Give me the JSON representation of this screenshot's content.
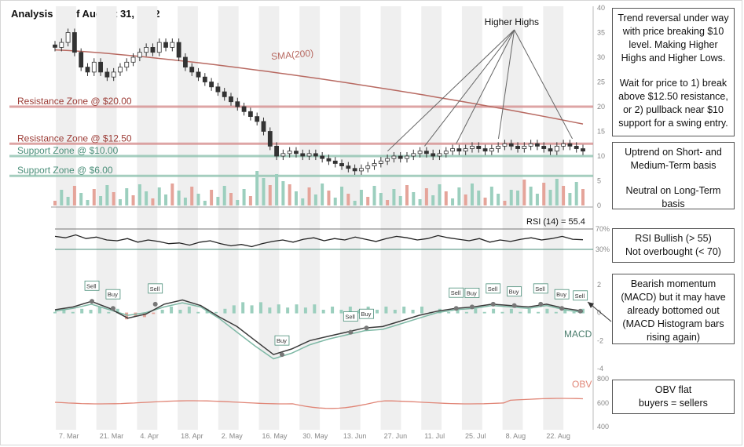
{
  "chart_data": {
    "type": "candlestick",
    "title": "Analysis as of August 31, 2022",
    "date_ticks": [
      "7. Mar",
      "21. Mar",
      "4. Apr",
      "18. Apr",
      "2. May",
      "16. May",
      "30. May",
      "13. Jun",
      "27. Jun",
      "11. Jul",
      "25. Jul",
      "8. Aug",
      "22. Aug"
    ],
    "price_axis": {
      "ticks": [
        0,
        5,
        10,
        15,
        20,
        25,
        30,
        35,
        40
      ],
      "ylim": [
        0,
        40
      ]
    },
    "price_close": [
      32,
      33,
      35,
      31,
      28,
      27,
      29,
      27,
      26,
      27,
      28,
      29,
      30,
      31,
      32,
      31,
      33,
      32,
      33,
      30,
      28,
      27,
      26,
      25,
      24,
      23,
      22,
      21,
      20,
      19,
      18,
      17,
      15,
      12,
      10,
      10.5,
      11,
      10.5,
      10,
      10.5,
      10,
      9.5,
      9,
      8.5,
      8,
      7.5,
      7,
      7.5,
      8,
      8.5,
      9,
      9.5,
      10,
      9.5,
      10,
      10.5,
      11,
      10.5,
      10,
      10.5,
      11,
      11.5,
      11,
      11.5,
      12,
      11.5,
      11,
      11.5,
      12,
      12.5,
      12,
      11.5,
      12,
      12.5,
      12,
      11.5,
      11,
      12,
      12.5,
      12,
      11.5,
      11
    ],
    "sma200": {
      "label": "SMA(200)",
      "start": 31.5,
      "end": 16.5
    },
    "zones": [
      {
        "label": "Resistance Zone @ $20.00",
        "value": 20,
        "color": "#d68f8f"
      },
      {
        "label": "Resistance Zone @ $12.50",
        "value": 12.5,
        "color": "#d68f8f"
      },
      {
        "label": "Support Zone @ $10.00",
        "value": 10,
        "color": "#8fc3b0"
      },
      {
        "label": "Support Zone @ $6.00",
        "value": 6,
        "color": "#8fc3b0"
      }
    ],
    "annotation": {
      "label": "Higher Highs",
      "x_points": [
        0.63,
        0.7,
        0.76,
        0.84,
        0.98
      ]
    },
    "rsi": {
      "label": "RSI (14) = 55.4",
      "ticks": [
        "70%",
        "30%"
      ],
      "values": [
        60,
        58,
        62,
        57,
        59,
        55,
        54,
        57,
        52,
        55,
        53,
        50,
        51,
        48,
        52,
        54,
        50,
        47,
        49,
        46,
        50,
        53,
        55,
        52,
        56,
        58,
        54,
        57,
        55,
        59,
        56,
        53,
        57,
        60,
        58,
        55,
        57,
        61,
        58,
        56,
        54,
        57,
        52,
        55,
        53,
        56,
        58,
        55,
        57,
        60,
        56,
        55.4
      ]
    },
    "macd": {
      "label": "MACD",
      "ticks": [
        "2",
        "0",
        "-2",
        "-4"
      ],
      "macd_line": [
        0.2,
        0.4,
        0.8,
        0.3,
        -0.4,
        -0.1,
        0.6,
        0.9,
        0.5,
        -0.3,
        -1.0,
        -2.0,
        -3.0,
        -2.6,
        -2.0,
        -1.7,
        -1.4,
        -1.1,
        -1.0,
        -0.6,
        -0.2,
        0.1,
        0.3,
        0.4,
        0.6,
        0.5,
        0.4,
        0.6,
        0.3,
        0.1
      ],
      "signal_line": [
        0.1,
        0.3,
        0.6,
        0.2,
        -0.2,
        0.0,
        0.4,
        0.7,
        0.4,
        -0.4,
        -1.4,
        -2.4,
        -3.3,
        -2.9,
        -2.3,
        -1.9,
        -1.6,
        -1.3,
        -1.2,
        -0.8,
        -0.4,
        0.0,
        0.2,
        0.3,
        0.5,
        0.4,
        0.3,
        0.5,
        0.2,
        0.0
      ],
      "signals": [
        {
          "label": "Sell",
          "x": 0.07
        },
        {
          "label": "Buy",
          "x": 0.11
        },
        {
          "label": "Sell",
          "x": 0.19
        },
        {
          "label": "Buy",
          "x": 0.43
        },
        {
          "label": "Sell",
          "x": 0.56
        },
        {
          "label": "Buy",
          "x": 0.59
        },
        {
          "label": "Sell",
          "x": 0.76
        },
        {
          "label": "Buy",
          "x": 0.79
        },
        {
          "label": "Sell",
          "x": 0.83
        },
        {
          "label": "Buy",
          "x": 0.87
        },
        {
          "label": "Sell",
          "x": 0.92
        },
        {
          "label": "Buy",
          "x": 0.96
        },
        {
          "label": "Sell",
          "x": 0.995
        }
      ]
    },
    "obv": {
      "label": "OBV",
      "ticks": [
        "800",
        "600",
        "400"
      ]
    }
  },
  "notes": [
    {
      "id": "trend",
      "lines": [
        "Trend reversal under way with price breaking $10 level. Making Higher Highs and Higher Lows.",
        "",
        "Wait for price to 1) break above $12.50 resistance, or 2) pullback near $10 support for a swing entry."
      ]
    },
    {
      "id": "uptrend",
      "lines": [
        "Uptrend on Short- and Medium-Term basis",
        "",
        "Neutral on Long-Term basis"
      ]
    },
    {
      "id": "rsi",
      "lines": [
        "RSI Bullish (> 55)",
        "Not overbought (< 70)"
      ]
    },
    {
      "id": "macd",
      "lines": [
        "Bearish momentum (MACD) but it may have already bottomed out (MACD Histogram bars rising again)"
      ]
    },
    {
      "id": "obv",
      "lines": [
        "OBV flat",
        "buyers = sellers"
      ]
    }
  ],
  "colors": {
    "price": "#333333",
    "sma": "#b86a62",
    "resistance": "#d68f8f",
    "support": "#8fc3b0",
    "macd": "#3a3a3a",
    "signal": "#7fb9a6",
    "obv": "#e08576",
    "shade": "#efefef"
  }
}
